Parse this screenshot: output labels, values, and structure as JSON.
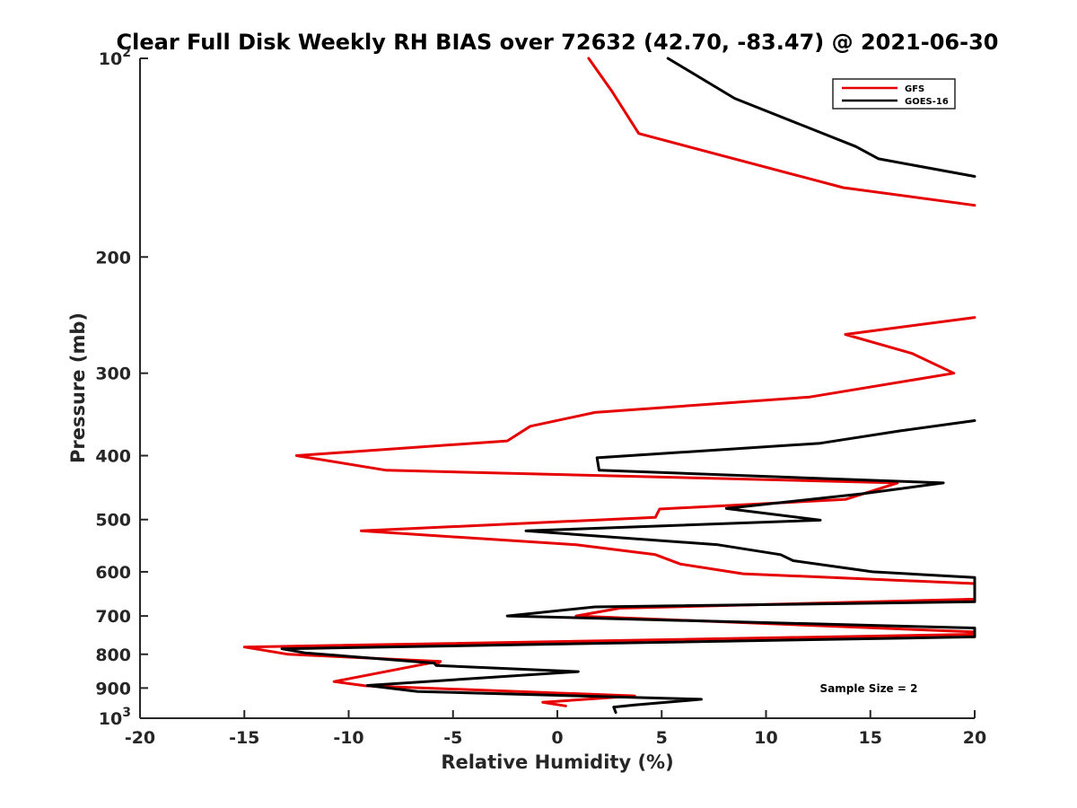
{
  "chart_data": {
    "type": "line",
    "title": "Clear Full Disk Weekly RH BIAS over 72632 (42.70, -83.47) @ 2021-06-30",
    "xlabel": "Relative Humidity (%)",
    "ylabel": "Pressure (mb)",
    "xlim": [
      -20,
      20
    ],
    "ylim": [
      100,
      1000
    ],
    "yscale": "log",
    "y_reversed": true,
    "grid": false,
    "legend_position": "top-right",
    "x_ticks": [
      "-20",
      "-15",
      "-10",
      "-5",
      "0",
      "5",
      "10",
      "15",
      "20"
    ],
    "y_ticks": [
      {
        "base": "10",
        "exp": "2"
      },
      {
        "base": "200",
        "exp": ""
      },
      {
        "base": "300",
        "exp": ""
      },
      {
        "base": "400",
        "exp": ""
      },
      {
        "base": "500",
        "exp": ""
      },
      {
        "base": "600",
        "exp": ""
      },
      {
        "base": "700",
        "exp": ""
      },
      {
        "base": "800",
        "exp": ""
      },
      {
        "base": "900",
        "exp": ""
      },
      {
        "base": "10",
        "exp": "3"
      }
    ],
    "annotation": "Sample Size = 2",
    "series": [
      {
        "name": "GFS",
        "color": "#e60000",
        "segments": [
          [
            [
              1.5,
              100
            ],
            [
              2.6,
              112
            ],
            [
              3.9,
              130
            ],
            [
              13.7,
              157
            ],
            [
              20,
              167
            ]
          ],
          [
            [
              20,
              247
            ],
            [
              13.8,
              262
            ],
            [
              17,
              280
            ],
            [
              19,
              300
            ],
            [
              12.1,
              326
            ],
            [
              1.8,
              344
            ],
            [
              -1.3,
              361
            ],
            [
              -2.4,
              380
            ],
            [
              -12.5,
              400
            ],
            [
              -8.2,
              421
            ],
            [
              16.3,
              440
            ],
            [
              13.8,
              466
            ],
            [
              4.9,
              482
            ],
            [
              4.7,
              496
            ],
            [
              -9.4,
              520
            ],
            [
              0.9,
              546
            ],
            [
              4.7,
              565
            ],
            [
              5.9,
              584
            ],
            [
              8.9,
              604
            ],
            [
              20,
              625
            ],
            [
              20,
              660
            ],
            [
              3,
              681
            ],
            [
              0.9,
              700
            ],
            [
              20,
              740
            ],
            [
              20,
              746
            ],
            [
              -15,
              780
            ],
            [
              -12.9,
              800
            ],
            [
              -5.6,
              820
            ],
            [
              -5.8,
              830
            ],
            [
              -5.7,
              820
            ],
            [
              -10.7,
              880
            ],
            [
              -9.2,
              893
            ],
            [
              3.7,
              925
            ],
            [
              -0.7,
              946
            ],
            [
              0.4,
              958
            ]
          ]
        ]
      },
      {
        "name": "GOES-16",
        "color": "#000000",
        "segments": [
          [
            [
              5.3,
              100
            ],
            [
              8.5,
              115
            ],
            [
              14.3,
              136
            ],
            [
              15.4,
              142
            ],
            [
              20,
              151
            ]
          ],
          [
            [
              20,
              354
            ],
            [
              16.4,
              367
            ],
            [
              12.6,
              383
            ],
            [
              1.9,
              403
            ],
            [
              2,
              421
            ],
            [
              18.5,
              440
            ],
            [
              14.6,
              457
            ],
            [
              8.1,
              481
            ],
            [
              12.6,
              501
            ],
            [
              -1.5,
              520
            ],
            [
              7.7,
              546
            ],
            [
              10.7,
              565
            ],
            [
              11.3,
              577
            ],
            [
              15.1,
              600
            ],
            [
              20,
              612
            ],
            [
              20,
              666
            ],
            [
              1.8,
              678
            ],
            [
              -2.4,
              700
            ],
            [
              20,
              730
            ],
            [
              20,
              753
            ],
            [
              -13.2,
              785
            ],
            [
              -12.1,
              796
            ],
            [
              -5.9,
              825
            ],
            [
              -5.8,
              832
            ],
            [
              1,
              850
            ],
            [
              -9.1,
              892
            ],
            [
              -6.7,
              911
            ],
            [
              6.9,
              936
            ],
            [
              3.7,
              955
            ],
            [
              2.7,
              962
            ],
            [
              2.8,
              980
            ]
          ]
        ]
      }
    ]
  }
}
